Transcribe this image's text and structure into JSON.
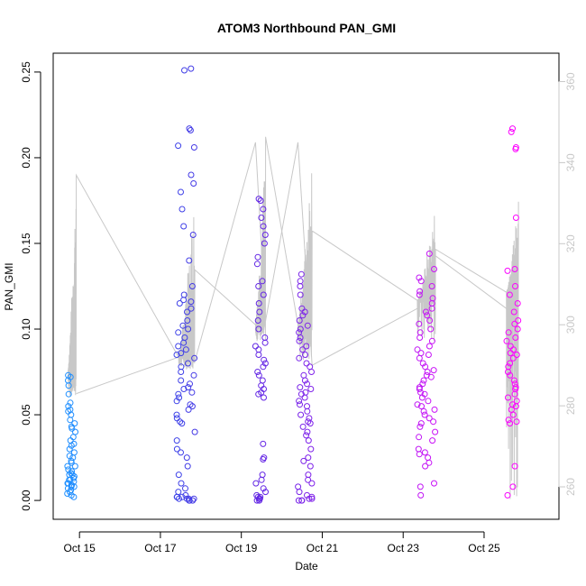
{
  "chart_data": {
    "type": "scatter",
    "title": "ATOM3 Northbound PAN_GMI",
    "xlabel": "Date",
    "ylabel": "PAN_GMI",
    "x_ticks": [
      "Oct 15",
      "Oct 17",
      "Oct 19",
      "Oct 21",
      "Oct 23",
      "Oct 25"
    ],
    "x_tick_days": [
      15,
      17,
      19,
      21,
      23,
      25
    ],
    "xlim": [
      14.35,
      26.85
    ],
    "ylim": [
      -0.011,
      0.261
    ],
    "y_ticks": [
      "0.00",
      "0.05",
      "0.10",
      "0.15",
      "0.20",
      "0.25"
    ],
    "y_tick_values": [
      0,
      0.05,
      0.1,
      0.15,
      0.2,
      0.25
    ],
    "right_axis": {
      "ticks": [
        "260",
        "280",
        "300",
        "320",
        "340",
        "360"
      ],
      "tick_values": [
        260,
        280,
        300,
        320,
        340,
        360
      ],
      "lim": [
        252,
        367
      ],
      "color": "#c8c8c8"
    },
    "grid": false,
    "legend": "none",
    "points": {
      "color_gradient": [
        "#1e90ff",
        "#4b28e0",
        "#a020f0",
        "#ff00ff"
      ],
      "marker": "open-circle",
      "clusters": [
        {
          "x_min": 14.7,
          "x_max": 14.92,
          "y_values": [
            0.073,
            0.072,
            0.07,
            0.067,
            0.062,
            0.057,
            0.055,
            0.053,
            0.052,
            0.05,
            0.047,
            0.045,
            0.043,
            0.042,
            0.04,
            0.037,
            0.035,
            0.033,
            0.032,
            0.03,
            0.028,
            0.026,
            0.025,
            0.023,
            0.022,
            0.02,
            0.018,
            0.017,
            0.016,
            0.015,
            0.014,
            0.013,
            0.012,
            0.011,
            0.01,
            0.009,
            0.008,
            0.007,
            0.006,
            0.005,
            0.004,
            0.003,
            0.002,
            0.012,
            0.01,
            0.009,
            0.008,
            0.015,
            0.02
          ]
        },
        {
          "x_min": 17.4,
          "x_max": 17.85,
          "y_values": [
            0.252,
            0.251,
            0.217,
            0.216,
            0.207,
            0.206,
            0.19,
            0.185,
            0.18,
            0.17,
            0.16,
            0.155,
            0.14,
            0.125,
            0.12,
            0.117,
            0.116,
            0.115,
            0.112,
            0.11,
            0.105,
            0.102,
            0.1,
            0.098,
            0.095,
            0.092,
            0.09,
            0.088,
            0.086,
            0.085,
            0.083,
            0.08,
            0.078,
            0.075,
            0.073,
            0.07,
            0.068,
            0.066,
            0.065,
            0.063,
            0.062,
            0.06,
            0.058,
            0.056,
            0.055,
            0.053,
            0.05,
            0.048,
            0.046,
            0.045,
            0.04,
            0.035,
            0.03,
            0.028,
            0.025,
            0.02,
            0.015,
            0.01,
            0.007,
            0.005,
            0.003,
            0.002,
            0.001,
            0.0,
            0.0,
            0.001,
            0.002,
            0.0,
            0.001,
            0.0,
            0.002,
            0.001
          ]
        },
        {
          "x_min": 19.35,
          "x_max": 19.6,
          "y_values": [
            0.176,
            0.175,
            0.17,
            0.165,
            0.16,
            0.155,
            0.15,
            0.142,
            0.138,
            0.128,
            0.125,
            0.12,
            0.115,
            0.11,
            0.105,
            0.1,
            0.095,
            0.092,
            0.09,
            0.088,
            0.085,
            0.082,
            0.08,
            0.078,
            0.075,
            0.073,
            0.07,
            0.067,
            0.065,
            0.063,
            0.062,
            0.06,
            0.033,
            0.025,
            0.024,
            0.015,
            0.012,
            0.01,
            0.007,
            0.005,
            0.003,
            0.002,
            0.001,
            0.0,
            0.0,
            0.001,
            0.002
          ]
        },
        {
          "x_min": 20.4,
          "x_max": 20.75,
          "y_values": [
            0.132,
            0.128,
            0.125,
            0.12,
            0.112,
            0.11,
            0.108,
            0.105,
            0.102,
            0.1,
            0.098,
            0.095,
            0.093,
            0.09,
            0.088,
            0.085,
            0.083,
            0.08,
            0.078,
            0.075,
            0.073,
            0.07,
            0.068,
            0.066,
            0.065,
            0.063,
            0.062,
            0.06,
            0.058,
            0.056,
            0.055,
            0.052,
            0.05,
            0.048,
            0.046,
            0.045,
            0.043,
            0.04,
            0.038,
            0.035,
            0.03,
            0.025,
            0.023,
            0.02,
            0.015,
            0.012,
            0.01,
            0.008,
            0.005,
            0.003,
            0.002,
            0.001,
            0.0,
            0.0,
            0.001,
            0.0
          ]
        },
        {
          "x_min": 23.35,
          "x_max": 23.8,
          "y_values": [
            0.144,
            0.135,
            0.13,
            0.128,
            0.125,
            0.122,
            0.12,
            0.118,
            0.115,
            0.112,
            0.11,
            0.108,
            0.105,
            0.103,
            0.1,
            0.098,
            0.095,
            0.093,
            0.09,
            0.088,
            0.086,
            0.085,
            0.083,
            0.08,
            0.078,
            0.076,
            0.075,
            0.073,
            0.072,
            0.07,
            0.068,
            0.066,
            0.065,
            0.063,
            0.062,
            0.06,
            0.058,
            0.056,
            0.055,
            0.053,
            0.052,
            0.05,
            0.048,
            0.046,
            0.045,
            0.043,
            0.04,
            0.037,
            0.035,
            0.03,
            0.028,
            0.027,
            0.025,
            0.022,
            0.02,
            0.01,
            0.008,
            0.003
          ]
        },
        {
          "x_min": 25.55,
          "x_max": 25.85,
          "y_values": [
            0.217,
            0.215,
            0.206,
            0.205,
            0.165,
            0.135,
            0.134,
            0.125,
            0.12,
            0.115,
            0.11,
            0.105,
            0.103,
            0.1,
            0.098,
            0.095,
            0.093,
            0.09,
            0.088,
            0.086,
            0.085,
            0.083,
            0.08,
            0.078,
            0.075,
            0.073,
            0.07,
            0.068,
            0.066,
            0.065,
            0.062,
            0.06,
            0.058,
            0.056,
            0.055,
            0.053,
            0.05,
            0.047,
            0.046,
            0.045,
            0.02,
            0.008,
            0.003
          ]
        }
      ]
    },
    "secondary_line": {
      "color": "#c8c8c8",
      "segments": [
        {
          "x_start": 14.72,
          "x_end": 14.92,
          "base": 289,
          "peak": 338,
          "low": 282
        },
        {
          "x_start": 17.45,
          "x_end": 17.85,
          "base": 292,
          "peak": 333,
          "low": 289
        },
        {
          "x_start": 19.35,
          "x_end": 19.6,
          "base": 300,
          "peak": 347,
          "low": 296
        },
        {
          "x_start": 20.4,
          "x_end": 20.75,
          "base": 300,
          "peak": 345,
          "low": 291
        },
        {
          "x_start": 23.35,
          "x_end": 23.8,
          "base": 306,
          "peak": 330,
          "low": 295
        },
        {
          "x_start": 25.55,
          "x_end": 25.85,
          "base": 308,
          "peak": 331,
          "low": 257
        }
      ],
      "connectors": [
        {
          "x": 14.92,
          "v": 283
        },
        {
          "x": 17.45,
          "v": 292
        },
        {
          "x": 17.85,
          "v": 291
        },
        {
          "x": 19.35,
          "v": 345
        },
        {
          "x": 19.6,
          "v": 301
        },
        {
          "x": 20.4,
          "v": 345
        },
        {
          "x": 20.75,
          "v": 290
        },
        {
          "x": 23.35,
          "v": 304
        },
        {
          "x": 23.8,
          "v": 317
        },
        {
          "x": 25.55,
          "v": 304
        }
      ]
    }
  }
}
